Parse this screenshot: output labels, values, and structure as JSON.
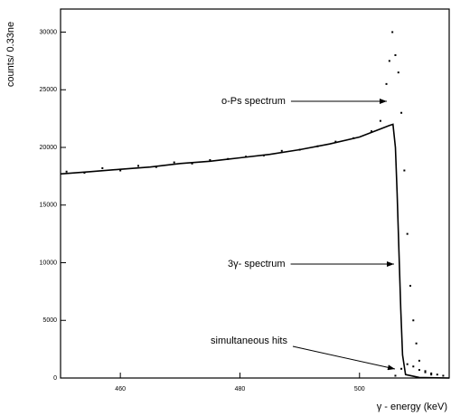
{
  "chart_data": {
    "type": "scatter-line",
    "ylabel": "counts/ 0.33ne",
    "xlabel": "γ - energy (keV)",
    "xlim": [
      450,
      515
    ],
    "xticks": [
      460,
      480,
      500
    ],
    "ylim": [
      0,
      32000
    ],
    "yticks": [
      0,
      5000,
      10000,
      15000,
      20000,
      25000,
      30000
    ],
    "series": [
      {
        "name": "o-Ps spectrum",
        "color": "#000000",
        "x": [
          451,
          454,
          457,
          460,
          463,
          466,
          469,
          472,
          475,
          478,
          481,
          484,
          487,
          490,
          493,
          496,
          499,
          502,
          503.5,
          504,
          504.5,
          505,
          505.5,
          506,
          506.5,
          507,
          507.5,
          508,
          508.5,
          509,
          509.5,
          510,
          511,
          512
        ],
        "values": [
          17900,
          17800,
          18200,
          18000,
          18400,
          18300,
          18700,
          18600,
          18900,
          19000,
          19200,
          19300,
          19700,
          19800,
          20100,
          20500,
          20800,
          21400,
          22300,
          24000,
          25500,
          27500,
          30000,
          28000,
          26500,
          23000,
          18000,
          12500,
          8000,
          5000,
          3000,
          1500,
          600,
          300
        ]
      },
      {
        "name": "3γ- spectrum",
        "color": "#000000",
        "x": [
          450,
          455,
          460,
          465,
          470,
          475,
          480,
          485,
          490,
          495,
          500,
          503,
          505,
          505.6,
          506,
          506.3,
          506.6,
          506.9,
          507.2,
          507.7,
          510,
          515
        ],
        "values": [
          17700,
          17900,
          18100,
          18300,
          18600,
          18800,
          19100,
          19400,
          19800,
          20300,
          20900,
          21500,
          21900,
          22000,
          20000,
          16000,
          11000,
          6000,
          2000,
          300,
          50,
          0
        ]
      },
      {
        "name": "simultaneous hits",
        "color": "#000000",
        "x": [
          506,
          507,
          508,
          509,
          510,
          511,
          512,
          513,
          514
        ],
        "values": [
          200,
          800,
          1200,
          1000,
          700,
          500,
          400,
          300,
          200
        ]
      }
    ]
  }
}
